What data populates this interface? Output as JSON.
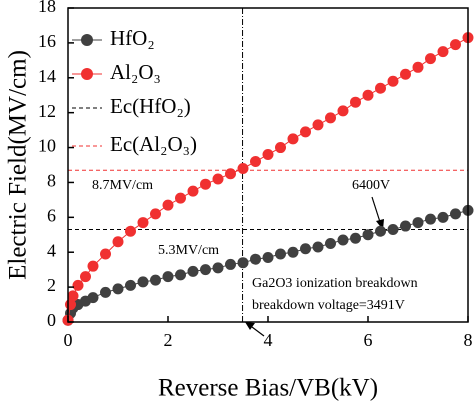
{
  "chart_data": {
    "type": "scatter-line",
    "xlabel": "Reverse Bias/VB(kV)",
    "ylabel": "Electric Field(MV/cm)",
    "x": [
      0,
      0.05,
      0.1,
      0.2,
      0.35,
      0.5,
      0.75,
      1,
      1.25,
      1.5,
      1.75,
      2,
      2.25,
      2.5,
      2.75,
      3,
      3.25,
      3.5,
      3.75,
      4,
      4.25,
      4.5,
      4.75,
      5,
      5.25,
      5.5,
      5.75,
      6,
      6.25,
      6.5,
      6.75,
      7,
      7.25,
      7.5,
      7.75,
      8
    ],
    "series": [
      {
        "name": "HfO₂",
        "color": "#404040",
        "values": [
          0.1,
          0.5,
          0.8,
          1.0,
          1.2,
          1.4,
          1.7,
          1.9,
          2.1,
          2.3,
          2.4,
          2.6,
          2.7,
          2.9,
          3.0,
          3.1,
          3.3,
          3.4,
          3.6,
          3.7,
          3.9,
          4.0,
          4.2,
          4.3,
          4.5,
          4.7,
          4.8,
          5.0,
          5.2,
          5.3,
          5.5,
          5.7,
          5.9,
          6.0,
          6.2,
          6.4
        ]
      },
      {
        "name": "Al₂O₃",
        "color": "#f03030",
        "values": [
          0.1,
          1.0,
          1.5,
          2.1,
          2.6,
          3.2,
          3.9,
          4.6,
          5.2,
          5.7,
          6.2,
          6.7,
          7.1,
          7.5,
          7.9,
          8.2,
          8.5,
          8.8,
          9.2,
          9.6,
          10.0,
          10.5,
          10.9,
          11.3,
          11.7,
          12.1,
          12.6,
          13.0,
          13.4,
          13.8,
          14.2,
          14.6,
          15.1,
          15.5,
          15.9,
          16.3
        ]
      }
    ],
    "hlines": [
      {
        "name": "Ec(HfO₂)",
        "value": 5.3,
        "color": "#000000"
      },
      {
        "name": "Ec(Al₂O₃)",
        "value": 8.7,
        "color": "#f03030"
      }
    ],
    "vline": 3.491,
    "annotations": [
      "8.7MV/cm",
      "5.3MV/cm",
      "6400V",
      "Ga2O3 ionization breakdown",
      "breakdown voltage=3491V"
    ],
    "xlim": [
      0,
      8
    ],
    "xticks": [
      0,
      2,
      4,
      6,
      8
    ],
    "ylim": [
      0,
      18
    ],
    "yticks": [
      0,
      2,
      4,
      6,
      8,
      10,
      12,
      14,
      16,
      18
    ]
  }
}
